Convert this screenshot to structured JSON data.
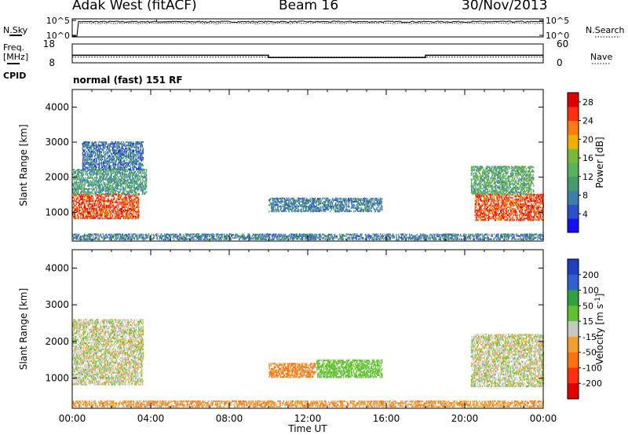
{
  "header": {
    "title": "Adak West (fitACF)",
    "beam": "Beam 16",
    "date": "30/Nov/2013"
  },
  "side_labels": {
    "nsky": "N.Sky",
    "freq": "Freq.",
    "freq_unit": "[MHz]",
    "cpid": "CPID",
    "nsearch": "N.Search",
    "nave": "Nave",
    "mode": "normal (fast) 151 RF"
  },
  "chart_data": [
    {
      "name": "noise",
      "type": "line",
      "y_left_ticks": [
        "10^5",
        "10^0"
      ],
      "y_right_ticks": [
        "10^5",
        "10^0"
      ],
      "series": [
        {
          "name": "N.Sky",
          "style": "solid",
          "level_log10": 4.2
        },
        {
          "name": "N.Search",
          "style": "dotted",
          "level_log10": 3.8
        }
      ]
    },
    {
      "name": "frequency-nave",
      "type": "line",
      "y_left_ticks": [
        "18",
        "8"
      ],
      "y_right_ticks": [
        "60",
        "0"
      ],
      "freq_range_mhz": [
        8,
        18
      ],
      "nave_range": [
        0,
        60
      ],
      "freq_segments_ut": [
        [
          0,
          10,
          12.0
        ],
        [
          10,
          18,
          10.8
        ],
        [
          18,
          24,
          12.0
        ]
      ],
      "nave_level": 18
    },
    {
      "name": "power",
      "type": "heatmap",
      "ylabel": "Slant Range [km]",
      "yticks": [
        1000,
        2000,
        3000,
        4000
      ],
      "ylim": [
        180,
        4500
      ],
      "xlim": [
        0,
        24
      ],
      "colorbar_label": "Power [dB]",
      "colorbar_ticks": [
        4,
        8,
        12,
        16,
        20,
        24,
        28
      ],
      "colorbar_range": [
        0,
        30
      ],
      "colorbar_colors": [
        "#1010f0",
        "#2c50c8",
        "#3d7fa8",
        "#4a9a6c",
        "#58b25a",
        "#7ab83a",
        "#f0b000",
        "#ff7a10",
        "#ff3010",
        "#e00000"
      ],
      "echo_regions": [
        {
          "t0": 0.0,
          "t1": 3.4,
          "r0": 800,
          "r1": 1500,
          "power": 26
        },
        {
          "t0": 0.0,
          "t1": 3.8,
          "r0": 1500,
          "r1": 2200,
          "power": 10
        },
        {
          "t0": 0.5,
          "t1": 3.6,
          "r0": 2200,
          "r1": 3000,
          "power": 6
        },
        {
          "t0": 10.0,
          "t1": 15.8,
          "r0": 1000,
          "r1": 1400,
          "power": 7
        },
        {
          "t0": 20.5,
          "t1": 24.0,
          "r0": 750,
          "r1": 1500,
          "power": 26
        },
        {
          "t0": 20.3,
          "t1": 23.5,
          "r0": 1500,
          "r1": 2300,
          "power": 12
        },
        {
          "t0": 0.0,
          "t1": 24.0,
          "r0": 200,
          "r1": 400,
          "power": 7
        }
      ]
    },
    {
      "name": "velocity",
      "type": "heatmap",
      "xlabel": "Time UT",
      "xticks": [
        "00:00",
        "04:00",
        "08:00",
        "12:00",
        "16:00",
        "20:00",
        "00:00"
      ],
      "ylabel": "Slant Range [km]",
      "yticks": [
        1000,
        2000,
        3000,
        4000
      ],
      "ylim": [
        180,
        4500
      ],
      "xlim": [
        0,
        24
      ],
      "colorbar_label": "Velocity [m s",
      "colorbar_label_sup": "-1",
      "colorbar_label_end": "]",
      "colorbar_ticks": [
        "200",
        "100",
        "50",
        "15",
        "-15",
        "-50",
        "-100",
        "-200"
      ],
      "colorbar_colors": [
        "#2040c0",
        "#3060d0",
        "#30a040",
        "#60c030",
        "#c8c8c0",
        "#f0a030",
        "#ff7010",
        "#ff3010",
        "#e00000"
      ],
      "echo_regions": [
        {
          "t0": 0.0,
          "t1": 3.6,
          "r0": 800,
          "r1": 2600,
          "velocity": 0
        },
        {
          "t0": 10.0,
          "t1": 12.4,
          "r0": 1000,
          "r1": 1400,
          "velocity": -60
        },
        {
          "t0": 12.4,
          "t1": 15.8,
          "r0": 1000,
          "r1": 1500,
          "velocity": 60
        },
        {
          "t0": 20.3,
          "t1": 24.0,
          "r0": 750,
          "r1": 2200,
          "velocity": 0
        },
        {
          "t0": 0.0,
          "t1": 24.0,
          "r0": 200,
          "r1": 400,
          "velocity": -40
        }
      ]
    }
  ]
}
